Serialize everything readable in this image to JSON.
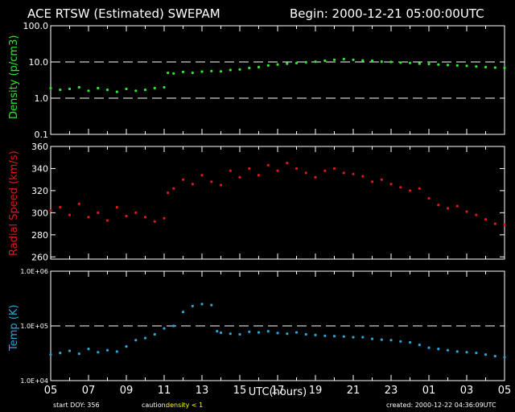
{
  "header": {
    "title": "ACE RTSW (Estimated) SWEPAM",
    "begin": "Begin: 2000-12-21 05:00:00UTC"
  },
  "colors": {
    "background": "#000000",
    "frame": "#ffffff",
    "density": "#2ee82e",
    "speed": "#e01818",
    "temp": "#2aa6d6",
    "caution": "#ffff00"
  },
  "footer": {
    "start_doy": "start DOY: 356",
    "caution_label": "caution:",
    "caution_value": "density < 1",
    "created": "created: 2000-12-22 04:36:09UTC"
  },
  "chart_data": [
    {
      "type": "scatter",
      "panel": "density",
      "ylabel": "Density (p/cm3)",
      "yscale": "log",
      "ylim": [
        0.1,
        100.0
      ],
      "ytick_labels": [
        "0.1",
        "1.0",
        "10.0",
        "100.0"
      ],
      "reference_lines": [
        1.0,
        10.0
      ],
      "x_unit": "hours since 05:00 UTC",
      "xlim": [
        0,
        24
      ],
      "points": [
        [
          0,
          1.9
        ],
        [
          0.5,
          1.7
        ],
        [
          1,
          1.8
        ],
        [
          1.5,
          2.0
        ],
        [
          2,
          1.6
        ],
        [
          2.5,
          1.9
        ],
        [
          3,
          1.7
        ],
        [
          3.5,
          1.5
        ],
        [
          4,
          1.8
        ],
        [
          4.5,
          1.6
        ],
        [
          5,
          1.7
        ],
        [
          5.5,
          1.9
        ],
        [
          6,
          2.0
        ],
        [
          6.2,
          5.0
        ],
        [
          6.5,
          4.8
        ],
        [
          7,
          5.3
        ],
        [
          7.5,
          5.0
        ],
        [
          8,
          5.4
        ],
        [
          8.5,
          5.6
        ],
        [
          9,
          5.5
        ],
        [
          9.5,
          6.0
        ],
        [
          10,
          6.2
        ],
        [
          10.5,
          6.8
        ],
        [
          11,
          7.2
        ],
        [
          11.5,
          8.0
        ],
        [
          12,
          8.5
        ],
        [
          12.5,
          9.0
        ],
        [
          13,
          9.3
        ],
        [
          13.5,
          9.8
        ],
        [
          14,
          10.2
        ],
        [
          14.5,
          10.8
        ],
        [
          15,
          11.5
        ],
        [
          15.5,
          12.0
        ],
        [
          16,
          11.5
        ],
        [
          16.5,
          11.0
        ],
        [
          17,
          10.8
        ],
        [
          17.5,
          10.2
        ],
        [
          18,
          10.0
        ],
        [
          18.5,
          9.6
        ],
        [
          19,
          9.4
        ],
        [
          19.5,
          9.0
        ],
        [
          20,
          8.8
        ],
        [
          20.5,
          8.5
        ],
        [
          21,
          8.2
        ],
        [
          21.5,
          8.0
        ],
        [
          22,
          7.8
        ],
        [
          22.5,
          7.5
        ],
        [
          23,
          7.2
        ],
        [
          23.5,
          7.0
        ],
        [
          24,
          6.8
        ]
      ]
    },
    {
      "type": "scatter",
      "panel": "speed",
      "ylabel": "Radial Speed (km/s)",
      "yscale": "linear",
      "ylim": [
        258,
        360
      ],
      "ytick_labels": [
        "260",
        "280",
        "300",
        "320",
        "340",
        "360"
      ],
      "x_unit": "hours since 05:00 UTC",
      "xlim": [
        0,
        24
      ],
      "points": [
        [
          0,
          302
        ],
        [
          0.5,
          305
        ],
        [
          1,
          298
        ],
        [
          1.5,
          308
        ],
        [
          2,
          296
        ],
        [
          2.5,
          300
        ],
        [
          3,
          293
        ],
        [
          3.5,
          305
        ],
        [
          4,
          297
        ],
        [
          4.5,
          300
        ],
        [
          5,
          296
        ],
        [
          5.5,
          292
        ],
        [
          6,
          295
        ],
        [
          6.2,
          318
        ],
        [
          6.5,
          322
        ],
        [
          7,
          330
        ],
        [
          7.5,
          326
        ],
        [
          8,
          334
        ],
        [
          8.5,
          328
        ],
        [
          9,
          325
        ],
        [
          9.5,
          338
        ],
        [
          10,
          332
        ],
        [
          10.5,
          340
        ],
        [
          11,
          334
        ],
        [
          11.5,
          343
        ],
        [
          12,
          338
        ],
        [
          12.5,
          345
        ],
        [
          13,
          340
        ],
        [
          13.5,
          336
        ],
        [
          14,
          332
        ],
        [
          14.5,
          338
        ],
        [
          15,
          340
        ],
        [
          15.5,
          336
        ],
        [
          16,
          335
        ],
        [
          16.5,
          333
        ],
        [
          17,
          328
        ],
        [
          17.5,
          330
        ],
        [
          18,
          326
        ],
        [
          18.5,
          323
        ],
        [
          19,
          320
        ],
        [
          19.5,
          322
        ],
        [
          20,
          313
        ],
        [
          20.5,
          307
        ],
        [
          21,
          304
        ],
        [
          21.5,
          306
        ],
        [
          22,
          301
        ],
        [
          22.5,
          298
        ],
        [
          23,
          294
        ],
        [
          23.5,
          290
        ],
        [
          24,
          289
        ]
      ]
    },
    {
      "type": "scatter",
      "panel": "temp",
      "ylabel": "Temp (K)",
      "yscale": "log",
      "ylim": [
        10000,
        1000000
      ],
      "ytick_labels": [
        "1.0E+04",
        "1.0E+05",
        "1.0E+06"
      ],
      "reference_lines": [
        100000
      ],
      "x_unit": "hours since 05:00 UTC",
      "xlim": [
        0,
        24
      ],
      "points": [
        [
          0,
          30000
        ],
        [
          0.5,
          32000
        ],
        [
          1,
          35000
        ],
        [
          1.5,
          31000
        ],
        [
          2,
          38000
        ],
        [
          2.5,
          33000
        ],
        [
          3,
          36000
        ],
        [
          3.5,
          34000
        ],
        [
          4,
          42000
        ],
        [
          4.5,
          55000
        ],
        [
          5,
          60000
        ],
        [
          5.5,
          70000
        ],
        [
          6,
          90000
        ],
        [
          6.5,
          100000
        ],
        [
          7,
          180000
        ],
        [
          7.5,
          230000
        ],
        [
          8,
          250000
        ],
        [
          8.5,
          240000
        ],
        [
          8.8,
          80000
        ],
        [
          9,
          75000
        ],
        [
          9.5,
          72000
        ],
        [
          10,
          70000
        ],
        [
          10.5,
          78000
        ],
        [
          11,
          76000
        ],
        [
          11.5,
          80000
        ],
        [
          12,
          74000
        ],
        [
          12.5,
          72000
        ],
        [
          13,
          76000
        ],
        [
          13.5,
          70000
        ],
        [
          14,
          68000
        ],
        [
          14.5,
          66000
        ],
        [
          15,
          65000
        ],
        [
          15.5,
          64000
        ],
        [
          16,
          62000
        ],
        [
          16.5,
          62000
        ],
        [
          17,
          58000
        ],
        [
          17.5,
          56000
        ],
        [
          18,
          55000
        ],
        [
          18.5,
          52000
        ],
        [
          19,
          50000
        ],
        [
          19.5,
          45000
        ],
        [
          20,
          40000
        ],
        [
          20.5,
          38000
        ],
        [
          21,
          36000
        ],
        [
          21.5,
          34000
        ],
        [
          22,
          33000
        ],
        [
          22.5,
          32000
        ],
        [
          23,
          30000
        ],
        [
          23.5,
          28000
        ],
        [
          24,
          27000
        ]
      ]
    }
  ],
  "x_axis": {
    "label": "UTC(hours)",
    "tick_labels": [
      "05",
      "07",
      "09",
      "11",
      "13",
      "15",
      "17",
      "19",
      "21",
      "23",
      "01",
      "03",
      "05"
    ]
  }
}
